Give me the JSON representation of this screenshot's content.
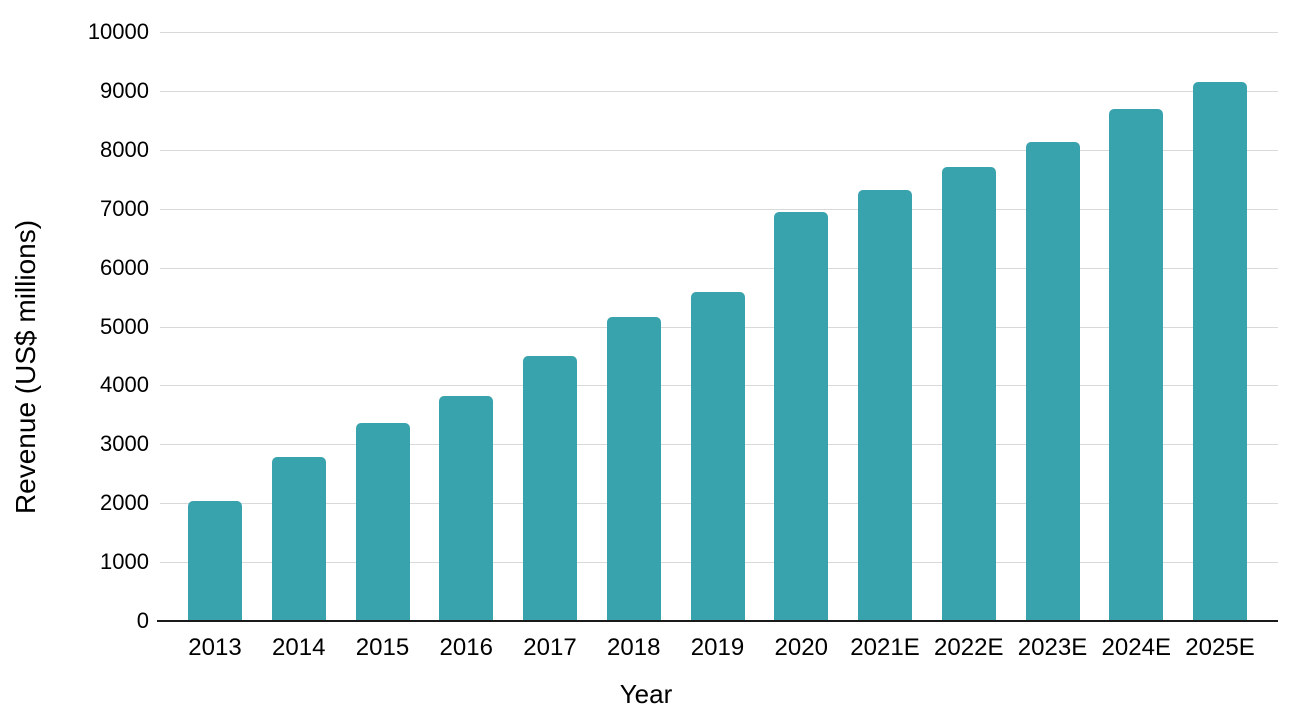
{
  "chart_data": {
    "type": "bar",
    "title": "",
    "xlabel": "Year",
    "ylabel": "Revenue (US$ millions)",
    "categories": [
      "2013",
      "2014",
      "2015",
      "2016",
      "2017",
      "2018",
      "2019",
      "2020",
      "2021E",
      "2022E",
      "2023E",
      "2024E",
      "2025E"
    ],
    "values": [
      2030,
      2780,
      3370,
      3820,
      4500,
      5170,
      5580,
      6950,
      7310,
      7700,
      8140,
      8690,
      9150
    ],
    "ylim": [
      0,
      10000
    ],
    "ytick_step": 1000,
    "ytick_labels": [
      "0",
      "1000",
      "2000",
      "3000",
      "4000",
      "5000",
      "6000",
      "7000",
      "8000",
      "9000",
      "10000"
    ],
    "grid": "horizontal",
    "legend": "none",
    "bar_color": "#38a3ac",
    "gridline_color": "#d9d9d9",
    "axis_line_color": "#1a1a1a",
    "text_color": "#000000",
    "background_color": "#ffffff"
  }
}
